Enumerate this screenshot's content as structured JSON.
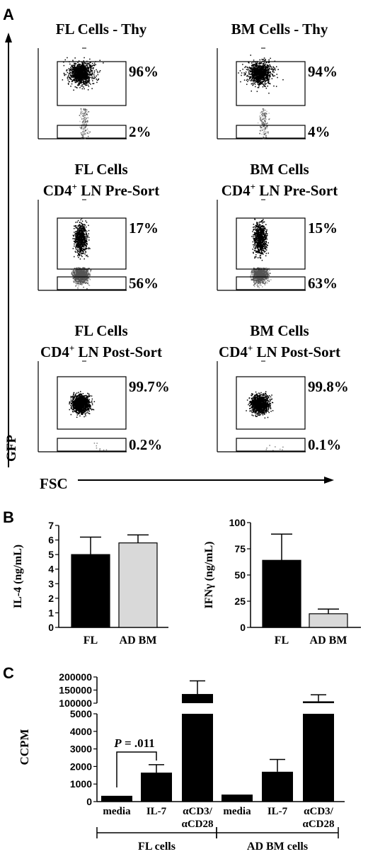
{
  "panels": {
    "a": "A",
    "b": "B",
    "c": "C"
  },
  "colors": {
    "black_bar": "#000000",
    "gray_bar": "#d9d9d9",
    "gfp_pos_events": "#000000",
    "gfp_neg_events": "#a6a6a6"
  },
  "panel_a": {
    "y_axis_label": "GFP",
    "x_axis_label": "FSC",
    "plots": [
      {
        "title1": "FL Cells - Thy",
        "title2": "",
        "upper_pct": "96%",
        "lower_pct": "2%",
        "upper_fraction": 0.96,
        "lower_fraction": 0.02
      },
      {
        "title1": "BM Cells - Thy",
        "title2": "",
        "upper_pct": "94%",
        "lower_pct": "4%",
        "upper_fraction": 0.94,
        "lower_fraction": 0.04
      },
      {
        "title1": "FL Cells",
        "title2": "CD4⁺ LN Pre-Sort",
        "upper_pct": "17%",
        "lower_pct": "56%",
        "upper_fraction": 0.17,
        "lower_fraction": 0.56
      },
      {
        "title1": "BM Cells",
        "title2": "CD4⁺ LN Pre-Sort",
        "upper_pct": "15%",
        "lower_pct": "63%",
        "upper_fraction": 0.15,
        "lower_fraction": 0.63
      },
      {
        "title1": "FL Cells",
        "title2": "CD4⁺ LN Post-Sort",
        "upper_pct": "99.7%",
        "lower_pct": "0.2%",
        "upper_fraction": 0.997,
        "lower_fraction": 0.002
      },
      {
        "title1": "BM Cells",
        "title2": "CD4⁺ LN Post-Sort",
        "upper_pct": "99.8%",
        "lower_pct": "0.1%",
        "upper_fraction": 0.998,
        "lower_fraction": 0.001
      }
    ]
  },
  "chart_data": [
    {
      "type": "bar",
      "ylabel": "IL-4 (ng/mL)",
      "categories": [
        "FL",
        "AD BM"
      ],
      "values": [
        5.0,
        5.8
      ],
      "errors": [
        1.2,
        0.55
      ],
      "colors": [
        "#000000",
        "#d9d9d9"
      ],
      "ylim": [
        0,
        7
      ],
      "yticks": [
        "0",
        "1",
        "2",
        "3",
        "4",
        "5",
        "6",
        "7"
      ]
    },
    {
      "type": "bar",
      "ylabel": "IFNγ (ng/mL)",
      "categories": [
        "FL",
        "AD BM"
      ],
      "values": [
        64,
        13
      ],
      "errors": [
        25,
        4.5
      ],
      "colors": [
        "#000000",
        "#d9d9d9"
      ],
      "ylim": [
        0,
        100
      ],
      "yticks": [
        "0",
        "25",
        "50",
        "75",
        "100"
      ]
    },
    {
      "type": "bar",
      "ylabel": "CCPM",
      "categories": [
        "media",
        "IL-7",
        "αCD3/ αCD28",
        "media",
        "IL-7",
        "αCD3/ αCD28"
      ],
      "category_lines": [
        [
          "media"
        ],
        [
          "IL-7"
        ],
        [
          "αCD3/",
          "αCD28"
        ],
        [
          "media"
        ],
        [
          "IL-7"
        ],
        [
          "αCD3/",
          "αCD28"
        ]
      ],
      "values": [
        330,
        1650,
        135000,
        400,
        1700,
        107000
      ],
      "errors": [
        0,
        450,
        50000,
        0,
        700,
        25000
      ],
      "y_axis_break": [
        5000,
        100000
      ],
      "lower_ticks": [
        "0",
        "1000",
        "2000",
        "3000",
        "4000",
        "5000"
      ],
      "upper_ticks": [
        "100000",
        "150000",
        "200000"
      ],
      "ylim_lower": [
        0,
        5000
      ],
      "ylim_upper": [
        100000,
        200000
      ],
      "annotation": {
        "text_p": "P",
        "text_rest": " = .011",
        "between": [
          0,
          1
        ]
      },
      "groups": [
        {
          "label": "FL cells",
          "categories": [
            0,
            1,
            2
          ]
        },
        {
          "label": "AD BM cells",
          "categories": [
            3,
            4,
            5
          ]
        }
      ]
    }
  ]
}
